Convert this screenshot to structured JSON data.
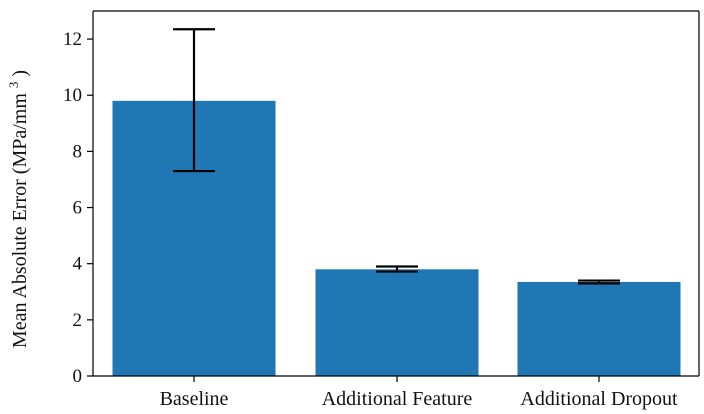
{
  "chart_data": {
    "type": "bar",
    "title": "",
    "xlabel": "",
    "ylabel": {
      "main": "Mean Absolute Error (MPa/mm",
      "superscript": "3",
      "suffix": ")"
    },
    "categories": [
      "Baseline",
      "Additional Feature",
      "Additional Dropout"
    ],
    "values": [
      9.8,
      3.8,
      3.35
    ],
    "error_low": [
      7.3,
      3.72,
      3.3
    ],
    "error_high": [
      12.35,
      3.9,
      3.4
    ],
    "ylim": [
      0,
      13
    ],
    "yticks": [
      0,
      2,
      4,
      6,
      8,
      10,
      12
    ],
    "ytick_labels": [
      "0",
      "2",
      "4",
      "6",
      "8",
      "10",
      "12"
    ],
    "grid": false,
    "legend": "none",
    "colors": {
      "bar": "#1f77b4",
      "error_bar": "#000000",
      "axis": "#000000"
    }
  }
}
